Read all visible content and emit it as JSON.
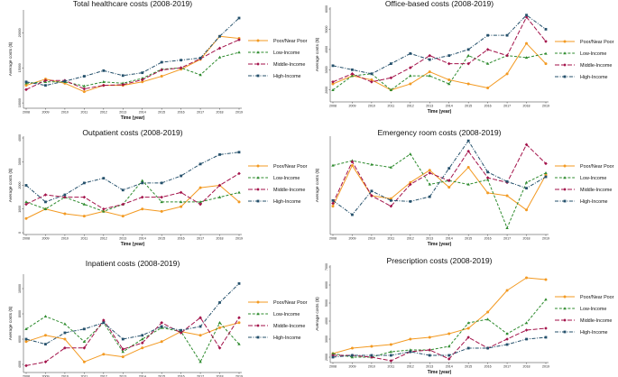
{
  "chart_data": [
    {
      "type": "line",
      "title": "Total healthcare costs (2008-2019)",
      "xlabel": "Time (year)",
      "ylabel": "Average costs ($)",
      "ylim": [
        9500,
        23000
      ],
      "yticks": [
        10000,
        15000,
        20000
      ],
      "x": [
        2008,
        2009,
        2010,
        2011,
        2012,
        2013,
        2014,
        2015,
        2016,
        2017,
        2018,
        2019
      ],
      "series": [
        {
          "name": "Poor/Near Poor",
          "values": [
            12500,
            13400,
            12800,
            11600,
            12500,
            12500,
            13000,
            13800,
            14800,
            16200,
            19500,
            19200
          ]
        },
        {
          "name": "Low-Income",
          "values": [
            12800,
            13000,
            13000,
            12400,
            13000,
            12800,
            13500,
            14800,
            15000,
            14000,
            16500,
            17200
          ]
        },
        {
          "name": "Middle-Income",
          "values": [
            11900,
            13200,
            13200,
            12000,
            12500,
            12600,
            13300,
            14700,
            15000,
            16300,
            17800,
            19000
          ]
        },
        {
          "name": "High-Income",
          "values": [
            13000,
            12500,
            13100,
            13800,
            14600,
            13900,
            14300,
            15800,
            16100,
            16400,
            19500,
            22100
          ]
        }
      ]
    },
    {
      "type": "line",
      "title": "Office-based costs (2008-2019)",
      "xlabel": "Time (year)",
      "ylabel": "Average costs ($)",
      "ylim": [
        1500,
        6000
      ],
      "yticks": [
        2000,
        3000,
        4000,
        5000,
        6000
      ],
      "x": [
        2008,
        2009,
        2010,
        2011,
        2012,
        2013,
        2014,
        2015,
        2016,
        2017,
        2018,
        2019
      ],
      "series": [
        {
          "name": "Poor/Near Poor",
          "values": [
            2300,
            2700,
            2500,
            2000,
            2300,
            2900,
            2500,
            2300,
            2100,
            2800,
            4300,
            3300
          ]
        },
        {
          "name": "Low-Income",
          "values": [
            2000,
            2700,
            2800,
            2000,
            2700,
            2700,
            2300,
            3700,
            3300,
            3700,
            3600,
            3800
          ]
        },
        {
          "name": "Middle-Income",
          "values": [
            2400,
            2800,
            2400,
            2600,
            3100,
            3700,
            3300,
            3300,
            4000,
            3700,
            5600,
            4400
          ]
        },
        {
          "name": "High-Income",
          "values": [
            3200,
            3000,
            2800,
            3300,
            3800,
            3500,
            3700,
            4000,
            4700,
            4700,
            5700,
            5000
          ]
        }
      ]
    },
    {
      "type": "line",
      "title": "Outpatient costs (2008-2019)",
      "xlabel": "Time (year)",
      "ylabel": "Average costs ($)",
      "ylim": [
        0,
        4000
      ],
      "yticks": [
        0,
        1000,
        2000,
        3000,
        4000
      ],
      "x": [
        2008,
        2009,
        2010,
        2011,
        2012,
        2013,
        2014,
        2015,
        2016,
        2017,
        2018,
        2019
      ],
      "series": [
        {
          "name": "Poor/Near Poor",
          "values": [
            600,
            1000,
            800,
            700,
            900,
            700,
            1000,
            900,
            1100,
            1900,
            2000,
            1300
          ]
        },
        {
          "name": "Low-Income",
          "values": [
            1300,
            1000,
            1500,
            1200,
            900,
            1200,
            2200,
            1300,
            1300,
            1300,
            1500,
            1700
          ]
        },
        {
          "name": "Middle-Income",
          "values": [
            1200,
            1600,
            1500,
            1500,
            1000,
            1200,
            1500,
            1500,
            1700,
            1200,
            2000,
            2500
          ]
        },
        {
          "name": "High-Income",
          "values": [
            2000,
            1300,
            1600,
            2100,
            2300,
            1800,
            2100,
            2100,
            2400,
            2900,
            3300,
            3400
          ]
        }
      ]
    },
    {
      "type": "line",
      "title": "Emergency room costs (2008-2019)",
      "xlabel": "Time (year)",
      "ylabel": "Average costs ($)",
      "ylim": [
        0,
        1
      ],
      "yticks": [],
      "x": [
        2008,
        2009,
        2010,
        2011,
        2012,
        2013,
        2014,
        2015,
        2016,
        2017,
        2018,
        2019
      ],
      "series": [
        {
          "name": "Poor/Near Poor",
          "values": [
            0.28,
            0.71,
            0.39,
            0.36,
            0.53,
            0.66,
            0.48,
            0.69,
            0.42,
            0.39,
            0.24,
            0.61
          ]
        },
        {
          "name": "Low-Income",
          "values": [
            0.71,
            0.76,
            0.72,
            0.69,
            0.83,
            0.51,
            0.55,
            0.51,
            0.56,
            0.05,
            0.53,
            0.63
          ]
        },
        {
          "name": "Middle-Income",
          "values": [
            0.31,
            0.75,
            0.39,
            0.28,
            0.51,
            0.63,
            0.55,
            0.86,
            0.58,
            0.53,
            0.93,
            0.73
          ]
        },
        {
          "name": "High-Income",
          "values": [
            0.34,
            0.19,
            0.44,
            0.34,
            0.33,
            0.38,
            0.68,
            0.97,
            0.64,
            0.54,
            0.47,
            0.59
          ]
        }
      ]
    },
    {
      "type": "line",
      "title": "Inpatient costs (2008-2019)",
      "xlabel": "Time (year)",
      "ylabel": "Average costs ($)",
      "ylim": [
        3500,
        11000
      ],
      "yticks": [
        4000,
        6000,
        8000,
        10000
      ],
      "x": [
        2008,
        2009,
        2010,
        2011,
        2012,
        2013,
        2014,
        2015,
        2016,
        2017,
        2018,
        2019
      ],
      "series": [
        {
          "name": "Poor/Near Poor",
          "values": [
            5800,
            6300,
            6000,
            4200,
            4800,
            4600,
            5300,
            5800,
            6600,
            6300,
            6900,
            7300
          ]
        },
        {
          "name": "Low-Income",
          "values": [
            6800,
            7800,
            7200,
            5800,
            7300,
            5000,
            6000,
            6900,
            6600,
            4200,
            7300,
            5600
          ]
        },
        {
          "name": "Middle-Income",
          "values": [
            3900,
            4200,
            5300,
            5300,
            7500,
            5200,
            5700,
            7300,
            6500,
            7700,
            5300,
            7700
          ]
        },
        {
          "name": "High-Income",
          "values": [
            6000,
            5600,
            6500,
            6800,
            7300,
            6000,
            6300,
            7000,
            6700,
            7000,
            8900,
            10400
          ]
        }
      ]
    },
    {
      "type": "line",
      "title": "Prescription costs (2008-2019)",
      "xlabel": "Time (year)",
      "ylabel": "Average costs ($)",
      "ylim": [
        1800,
        7000
      ],
      "yticks": [
        2000,
        3000,
        4000,
        5000,
        6000,
        7000
      ],
      "x": [
        2008,
        2009,
        2010,
        2011,
        2012,
        2013,
        2014,
        2015,
        2016,
        2017,
        2018,
        2019
      ],
      "series": [
        {
          "name": "Poor/Near Poor",
          "values": [
            2200,
            2500,
            2600,
            2700,
            3000,
            3100,
            3300,
            3600,
            4500,
            5700,
            6400,
            6300
          ]
        },
        {
          "name": "Low-Income",
          "values": [
            2200,
            2000,
            2000,
            2300,
            2400,
            2400,
            2600,
            3900,
            4100,
            3300,
            3900,
            5200
          ]
        },
        {
          "name": "Middle-Income",
          "values": [
            2100,
            2100,
            2000,
            1800,
            2300,
            2400,
            1900,
            3100,
            2500,
            3000,
            3500,
            3600
          ]
        },
        {
          "name": "High-Income",
          "values": [
            2000,
            2100,
            2100,
            2100,
            2300,
            2100,
            2100,
            2500,
            2500,
            2700,
            3000,
            3100
          ]
        }
      ]
    }
  ],
  "legend": {
    "entries": [
      {
        "name": "Poor/Near Poor",
        "color": "#f39a22",
        "dash": "solid"
      },
      {
        "name": "Low-Income",
        "color": "#2e8b2e",
        "dash": "dash"
      },
      {
        "name": "Middle-Income",
        "color": "#a3124a",
        "dash": "longdash"
      },
      {
        "name": "High-Income",
        "color": "#24506b",
        "dash": "dashdot"
      }
    ]
  }
}
